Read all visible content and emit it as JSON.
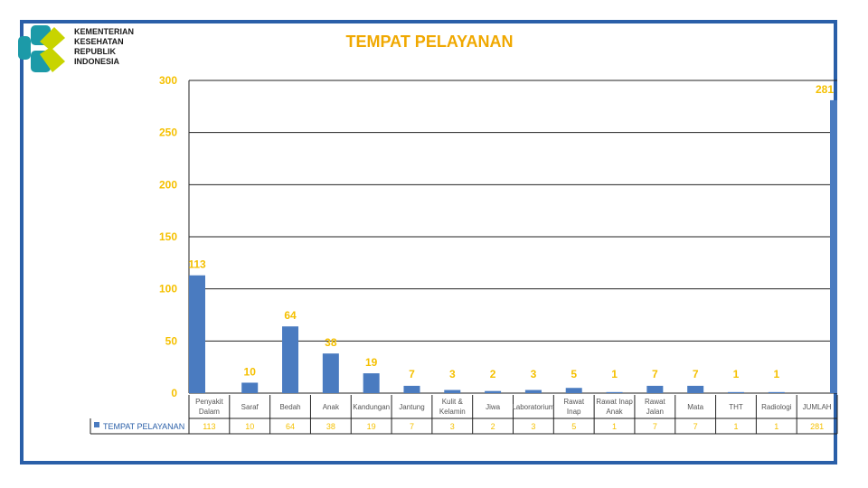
{
  "header": {
    "ministry_name": "KEMENTERIAN\nKESEHATAN\nREPUBLIK\nINDONESIA"
  },
  "colors": {
    "bar": "#4a7bc0",
    "label": "#f5c000",
    "title": "#f0a800",
    "frame": "#2a5fa8"
  },
  "chart_data": {
    "type": "bar",
    "title": "TEMPAT PELAYANAN",
    "xlabel": "",
    "ylabel": "",
    "ylim": [
      0,
      300
    ],
    "yticks": [
      0,
      50,
      100,
      150,
      200,
      250,
      300
    ],
    "grid": true,
    "categories": [
      "Penyakit Dalam",
      "Saraf",
      "Bedah",
      "Anak",
      "Kandungan",
      "Jantung",
      "Kulit & Kelamin",
      "Jiwa",
      "Laboratorium",
      "Rawat Inap",
      "Rawat Inap Anak",
      "Rawat Jalan",
      "Mata",
      "THT",
      "Radiologi",
      "JUMLAH"
    ],
    "series": [
      {
        "name": "TEMPAT PELAYANAN",
        "values": [
          113,
          10,
          64,
          38,
          19,
          7,
          3,
          2,
          3,
          5,
          1,
          7,
          7,
          1,
          1,
          281
        ]
      }
    ],
    "table_values": [
      "113",
      "10",
      "64",
      "38",
      "19",
      "7",
      "3",
      "2",
      "3",
      "5",
      "1",
      "7",
      "7",
      "1",
      "1",
      "281"
    ]
  }
}
